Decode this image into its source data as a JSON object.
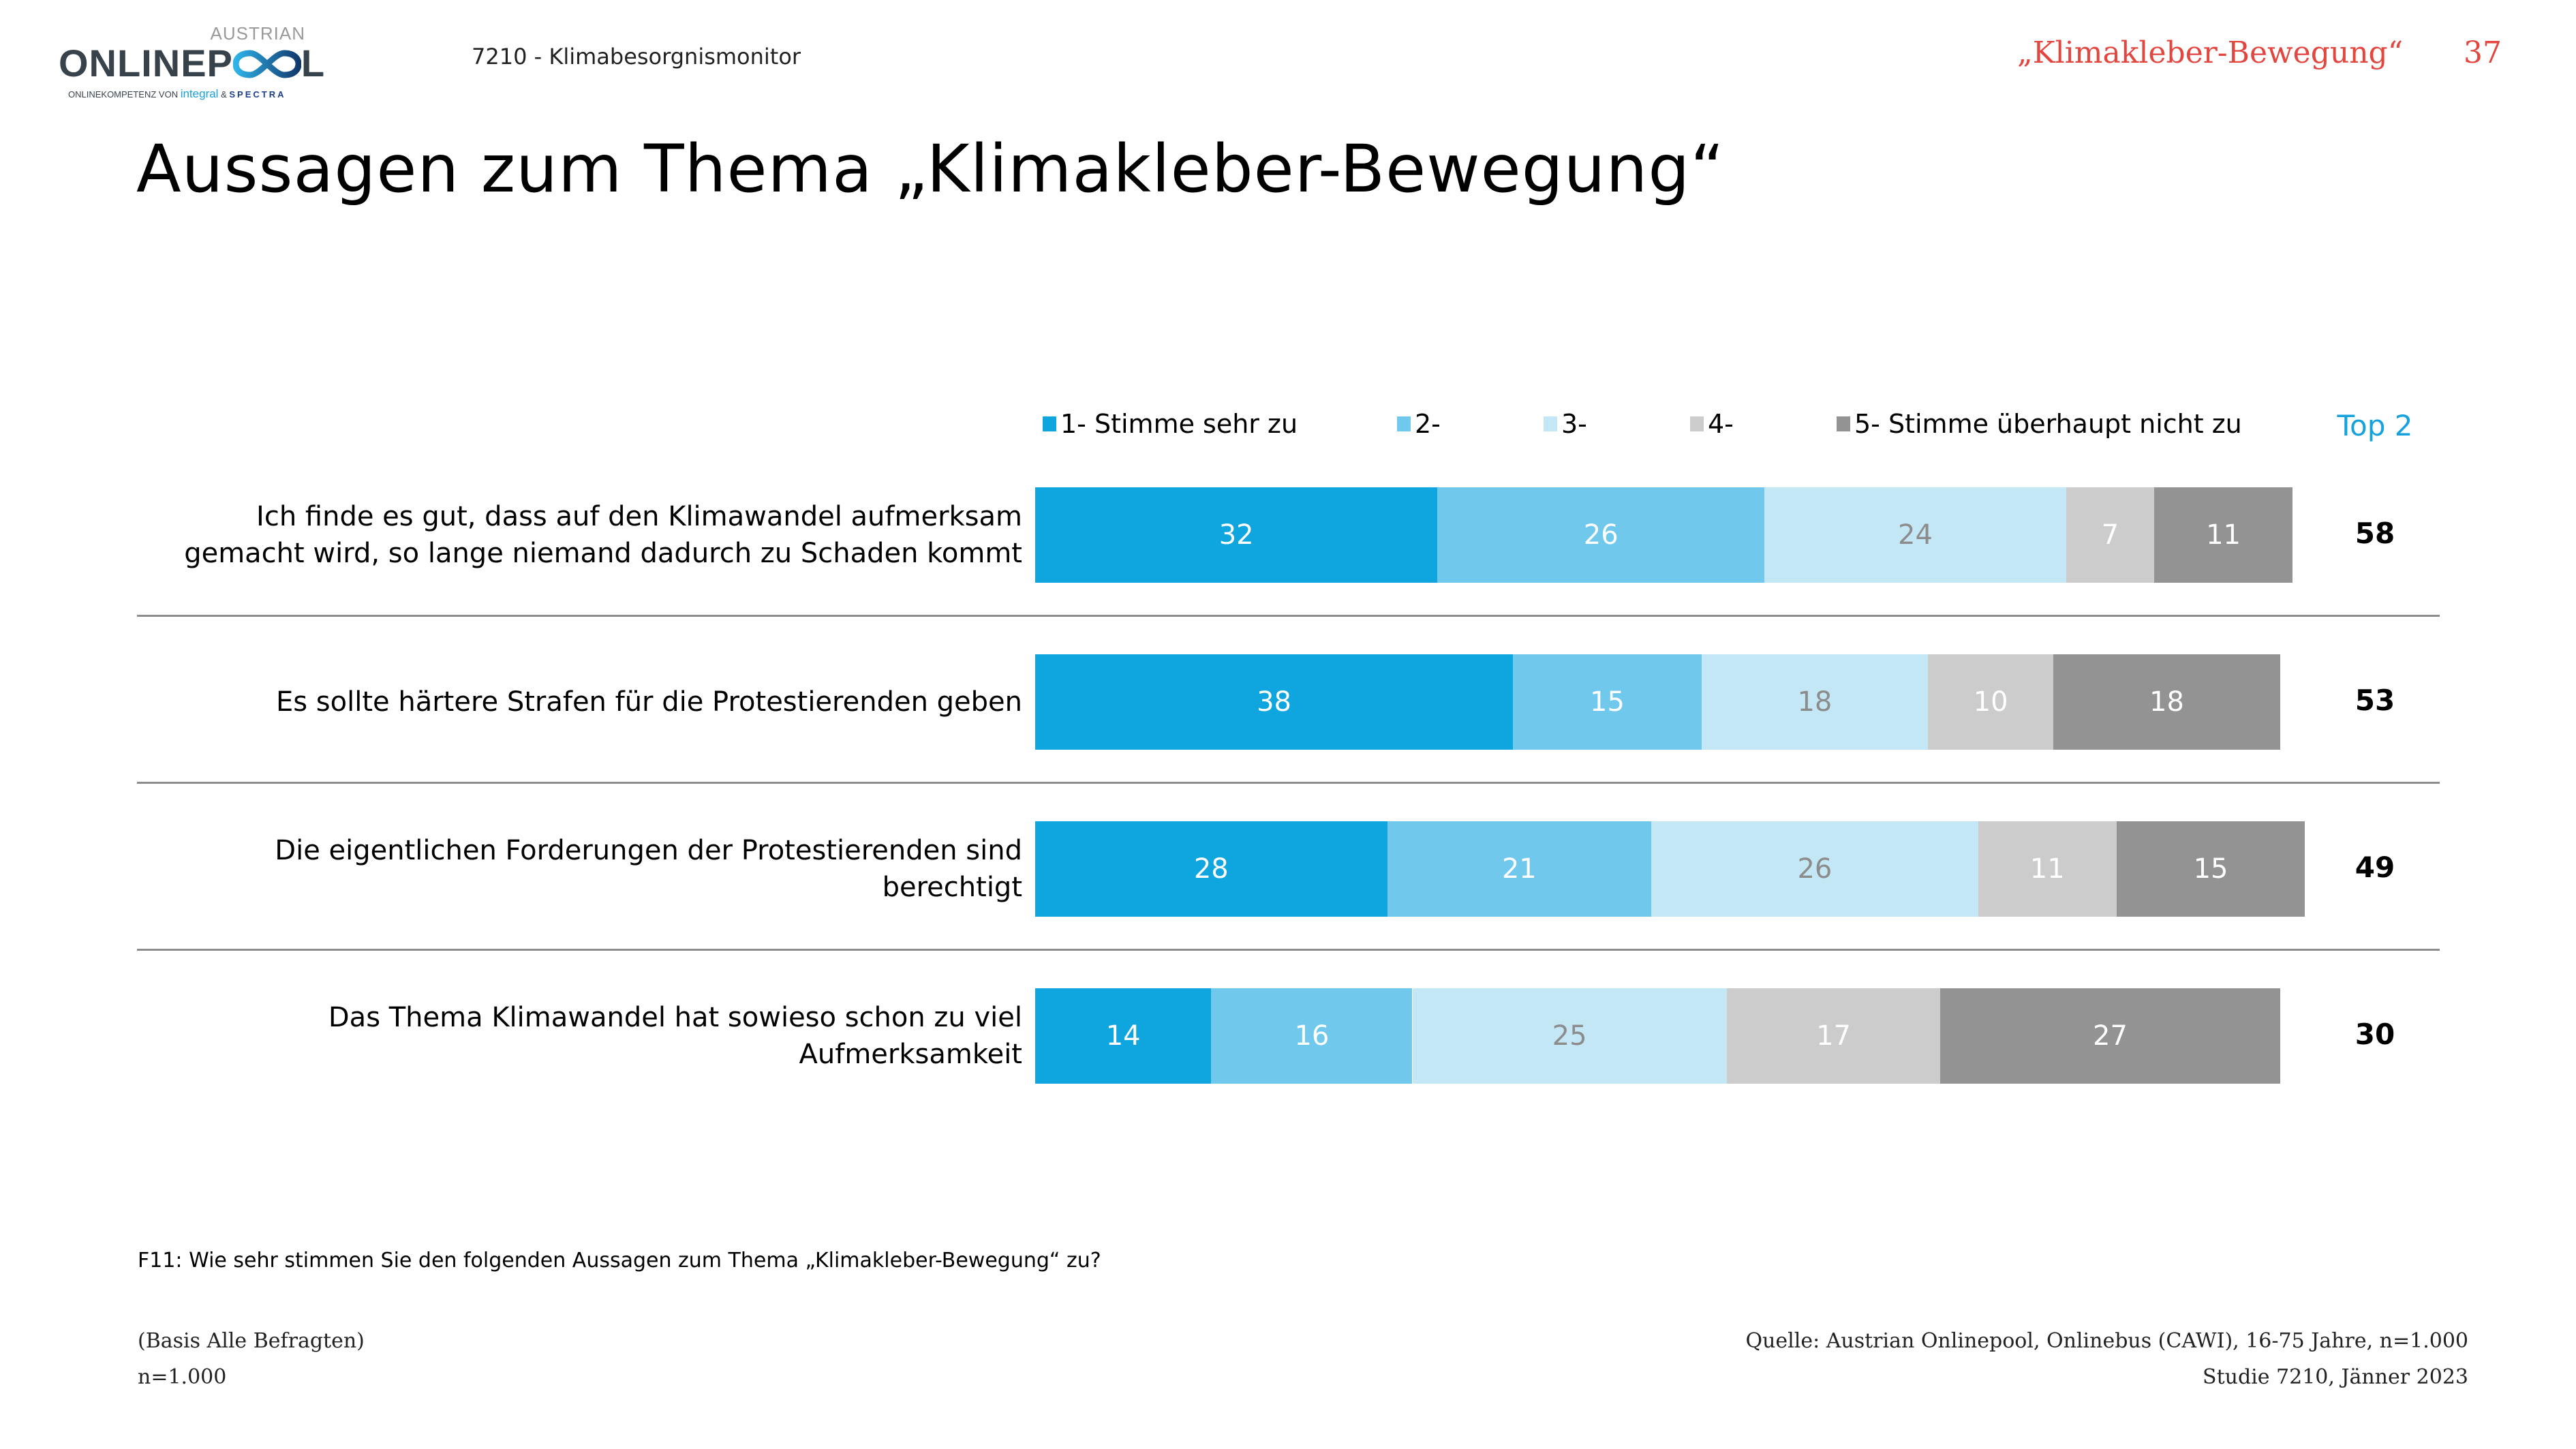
{
  "logo": {
    "top_text": "AUSTRIAN",
    "main_text_left": "ONLINEP",
    "main_text_right": "L",
    "sub_text": "ONLINEKOMPETENZ VON",
    "sub_brand1": "integral",
    "sub_amp": "&",
    "sub_brand2": "SPECTRA"
  },
  "header": {
    "study": "7210  - Klimabesorgnismonitor",
    "topic": "„Klimakleber-Bewegung“",
    "page_number": "37"
  },
  "title": "Aussagen zum Thema „Klimakleber-Bewegung“",
  "colors": {
    "cat1": "#0fa6df",
    "cat2": "#70c9ec",
    "cat3": "#c4e7f6",
    "cat4": "#cccccc",
    "cat5": "#939393",
    "accent": "#16a2dc",
    "header_red": "#e2463f"
  },
  "chart_data": {
    "type": "bar",
    "orientation": "horizontal-stacked",
    "unit": "%",
    "legend_position": "top",
    "categories": [
      "Ich finde es gut, dass auf den Klimawandel aufmerksam gemacht wird, so lange niemand dadurch zu Schaden kommt",
      "Es sollte härtere Strafen für die Protestierenden geben",
      "Die eigentlichen Forderungen der Protestierenden sind berechtigt",
      "Das Thema Klimawandel  hat sowieso schon zu viel Aufmerksamkeit"
    ],
    "category_lines": [
      [
        "Ich finde es gut, dass auf den Klimawandel aufmerksam",
        "gemacht wird, so lange niemand dadurch zu Schaden kommt"
      ],
      [
        "Es sollte härtere Strafen für die Protestierenden geben"
      ],
      [
        "Die eigentlichen Forderungen der Protestierenden sind",
        "berechtigt"
      ],
      [
        "Das Thema Klimawandel  hat sowieso schon zu viel",
        "Aufmerksamkeit"
      ]
    ],
    "series": [
      {
        "name": "1- Stimme sehr zu",
        "values": [
          32,
          38,
          28,
          14
        ]
      },
      {
        "name": "2-",
        "values": [
          26,
          15,
          21,
          16
        ]
      },
      {
        "name": "3-",
        "values": [
          24,
          18,
          26,
          25
        ]
      },
      {
        "name": "4-",
        "values": [
          7,
          10,
          11,
          17
        ]
      },
      {
        "name": "5- Stimme überhaupt nicht zu",
        "values": [
          11,
          18,
          15,
          27
        ]
      }
    ],
    "top2_label": "Top 2",
    "top2": [
      58,
      53,
      49,
      30
    ],
    "xlim": [
      0,
      100
    ]
  },
  "footer": {
    "question": "F11: Wie sehr stimmen Sie den folgenden Aussagen zum Thema „Klimakleber-Bewegung“ zu?",
    "basis": "(Basis Alle Befragten)",
    "n": "n=1.000",
    "source": "Quelle: Austrian Onlinepool, Onlinebus (CAWI), 16-75 Jahre, n=1.000",
    "study": "Studie 7210, Jänner 2023"
  }
}
